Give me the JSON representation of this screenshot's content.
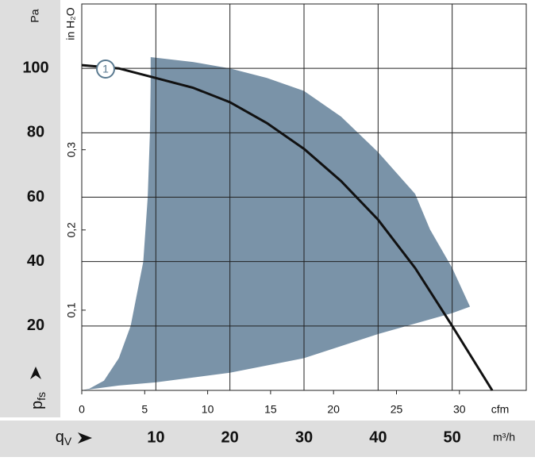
{
  "chart_data": {
    "type": "line",
    "y_label": "Pa",
    "y_axis_title": {
      "main": "p",
      "sub": "fs"
    },
    "y2_label": "in H₂O",
    "x_label": "m³/h",
    "x_axis_title": {
      "main": "q",
      "sub": "V"
    },
    "x2_label": "cfm",
    "xlim": [
      0,
      60
    ],
    "xticks": [
      10,
      20,
      30,
      40,
      50
    ],
    "ylim": [
      0,
      120
    ],
    "yticks": [
      20,
      40,
      60,
      80,
      100
    ],
    "x2lim": [
      0,
      35.31
    ],
    "x2ticks": [
      0,
      5,
      10,
      15,
      20,
      25,
      30
    ],
    "y2lim": [
      0,
      0.4817
    ],
    "y2ticks": [
      {
        "value": 0.1,
        "label": "0,1"
      },
      {
        "value": 0.2,
        "label": "0,2"
      },
      {
        "value": 0.3,
        "label": "0,3"
      }
    ],
    "grid": true,
    "region": {
      "color": "#7a93a8",
      "x": [
        0,
        1,
        3,
        5,
        6.6,
        8.3,
        8.9,
        9.2,
        9.3,
        9.3,
        15,
        20,
        25,
        30,
        35,
        40,
        45,
        47,
        50,
        52.4,
        50,
        40,
        30,
        20,
        10,
        5,
        0
      ],
      "y": [
        0,
        0.5,
        3,
        10,
        20,
        40,
        60,
        80,
        95,
        103.5,
        102,
        100,
        97,
        93,
        85,
        74,
        61,
        50,
        38,
        26,
        24,
        17.5,
        10,
        5.5,
        2.5,
        1.5,
        0
      ]
    },
    "series": [
      {
        "name": "1",
        "color": "#111111",
        "x": [
          0,
          5,
          10,
          15,
          20,
          25,
          30,
          35,
          40,
          45,
          50,
          55.4
        ],
        "values": [
          101,
          100,
          97,
          94,
          89.5,
          83,
          75,
          65,
          53,
          38,
          20,
          0
        ]
      }
    ]
  }
}
